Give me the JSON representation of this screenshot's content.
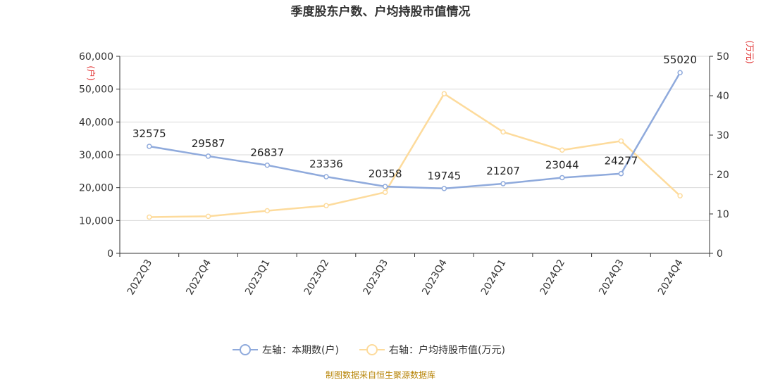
{
  "chart_data": {
    "type": "line",
    "title": "季度股东户数、户均持股市值情况",
    "categories": [
      "2022Q3",
      "2022Q4",
      "2023Q1",
      "2023Q2",
      "2023Q3",
      "2023Q4",
      "2024Q1",
      "2024Q2",
      "2024Q3",
      "2024Q4"
    ],
    "series": [
      {
        "name": "左轴：本期数(户)",
        "axis": "left",
        "color": "#8faadc",
        "values": [
          32575,
          29587,
          26837,
          23336,
          20358,
          19745,
          21207,
          23044,
          24277,
          55020
        ],
        "labels": [
          "32575",
          "29587",
          "26837",
          "23336",
          "20358",
          "19745",
          "21207",
          "23044",
          "24277",
          "55020"
        ]
      },
      {
        "name": "右轴：户均持股市值(万元)",
        "axis": "right",
        "color": "#fddb9c",
        "values": [
          9.2,
          9.4,
          10.8,
          12.1,
          15.5,
          40.5,
          30.8,
          26.2,
          28.5,
          14.6
        ]
      }
    ],
    "left_axis": {
      "unit": "(户)",
      "min": 0,
      "max": 60000,
      "ticks": [
        0,
        10000,
        20000,
        30000,
        40000,
        50000,
        60000
      ],
      "tick_labels": [
        "0",
        "10,000",
        "20,000",
        "30,000",
        "40,000",
        "50,000",
        "60,000"
      ]
    },
    "right_axis": {
      "unit": "(万元)",
      "min": 0,
      "max": 50,
      "ticks": [
        0,
        10,
        20,
        30,
        40,
        50
      ],
      "tick_labels": [
        "0",
        "10",
        "20",
        "30",
        "40",
        "50"
      ]
    },
    "grid": true,
    "legend_position": "bottom",
    "source": "制图数据来自恒生聚源数据库"
  }
}
